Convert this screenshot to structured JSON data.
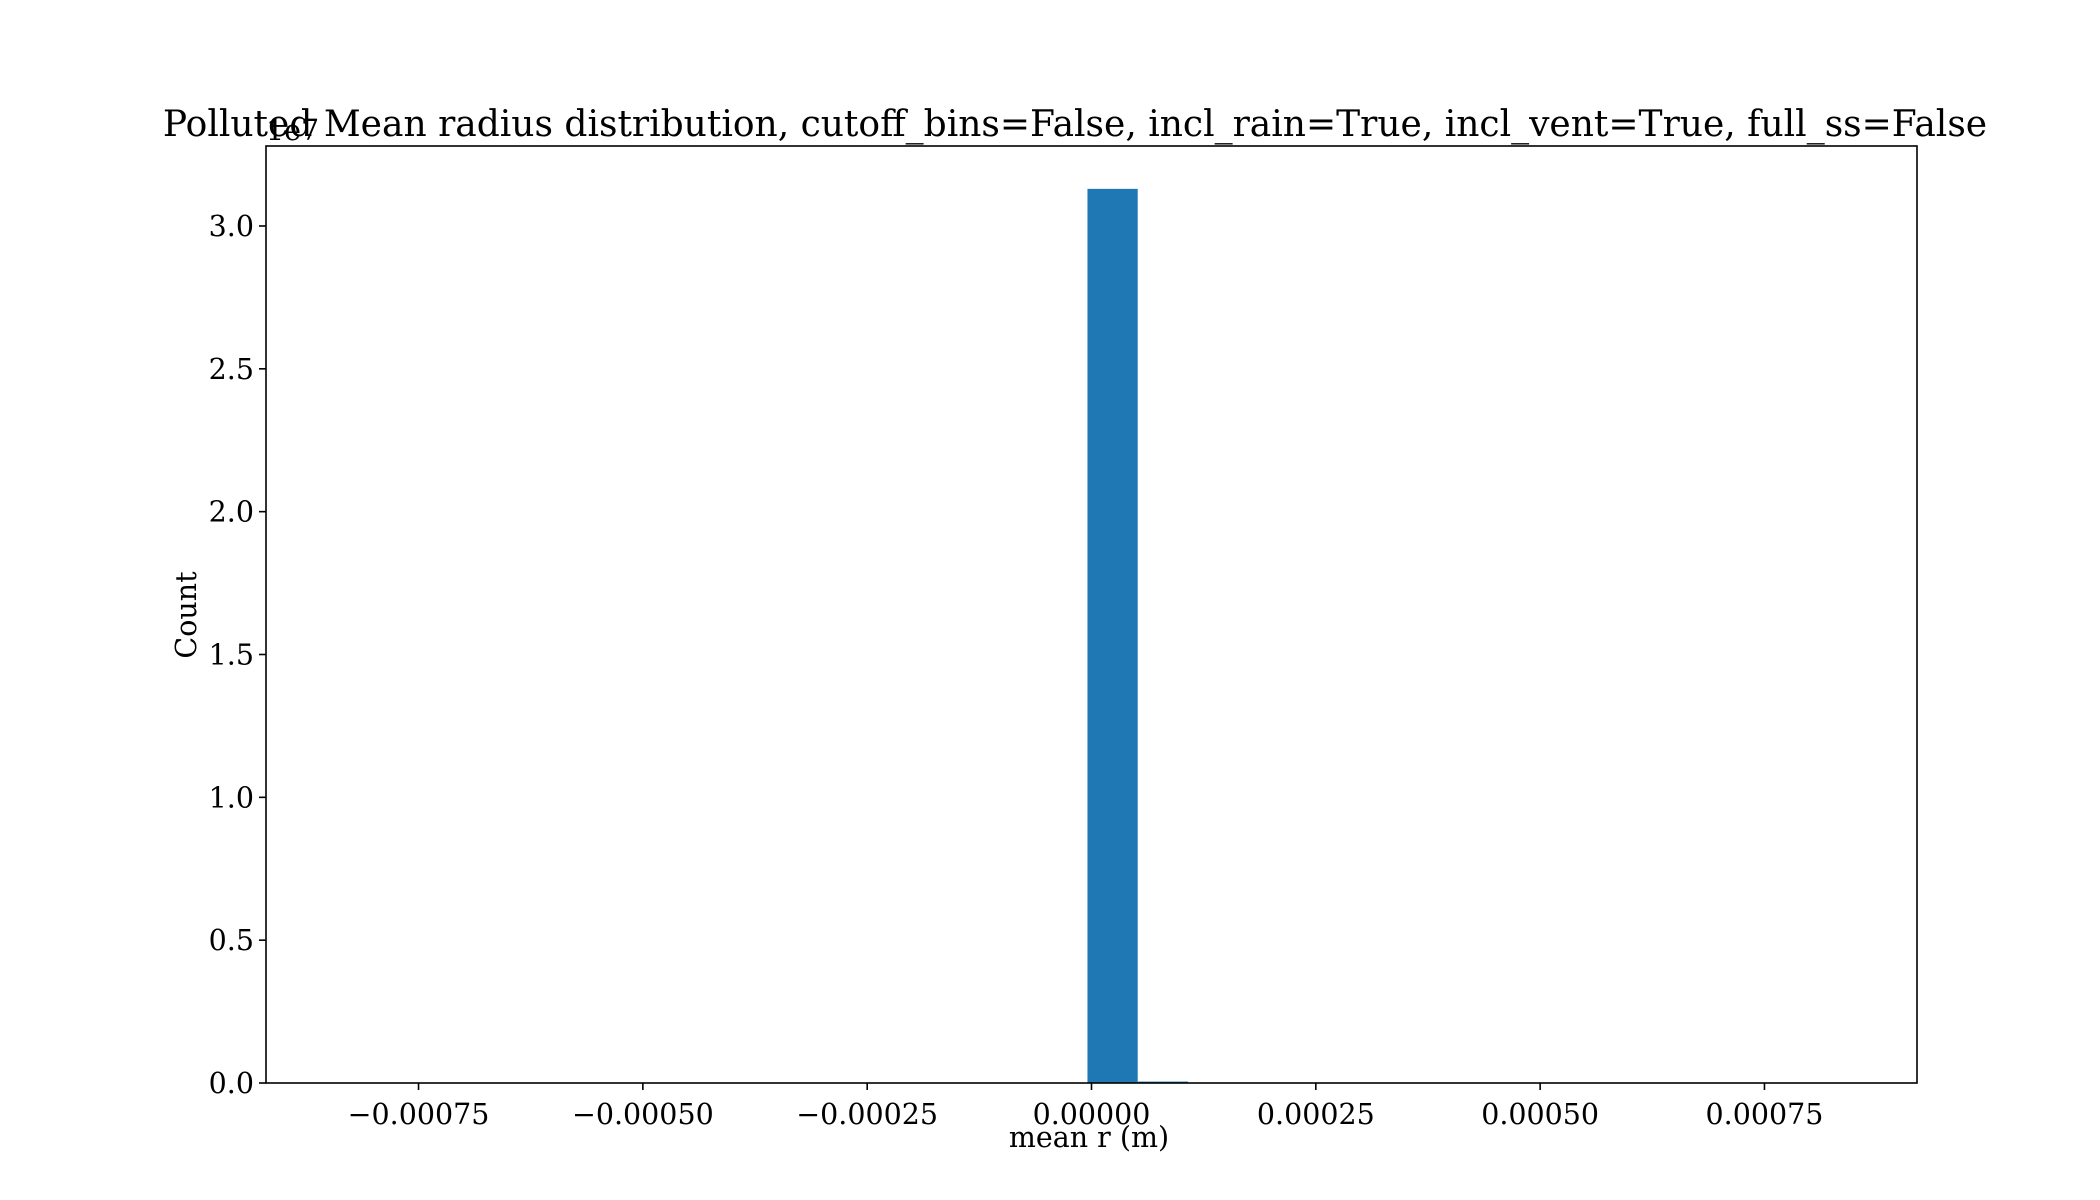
{
  "chart_data": {
    "type": "bar",
    "title": "Polluted Mean radius distribution, cutoff_bins=False, incl_rain=True, incl_vent=True, full_ss=False",
    "xlabel": "mean r (m)",
    "ylabel": "Count",
    "y_offset_text": "1e7",
    "xlim": [
      -0.00092,
      0.00092
    ],
    "ylim": [
      0,
      3.28
    ],
    "x_ticks": [
      -0.00075,
      -0.0005,
      -0.00025,
      0.0,
      0.00025,
      0.0005,
      0.00075
    ],
    "x_tick_labels": [
      "−0.00075",
      "−0.00050",
      "−0.00025",
      "0.00000",
      "0.00025",
      "0.00050",
      "0.00075"
    ],
    "y_ticks": [
      0.0,
      0.5,
      1.0,
      1.5,
      2.0,
      2.5,
      3.0
    ],
    "y_tick_labels": [
      "0.0",
      "0.5",
      "1.0",
      "1.5",
      "2.0",
      "2.5",
      "3.0"
    ],
    "bin_edges": [
      -4.5e-06,
      5.15e-05,
      0.0001075
    ],
    "values": [
      3.13,
      0.005
    ],
    "grid": false,
    "colors": {
      "bar": "#1f77b4",
      "axis": "#000000",
      "background": "#ffffff"
    }
  }
}
